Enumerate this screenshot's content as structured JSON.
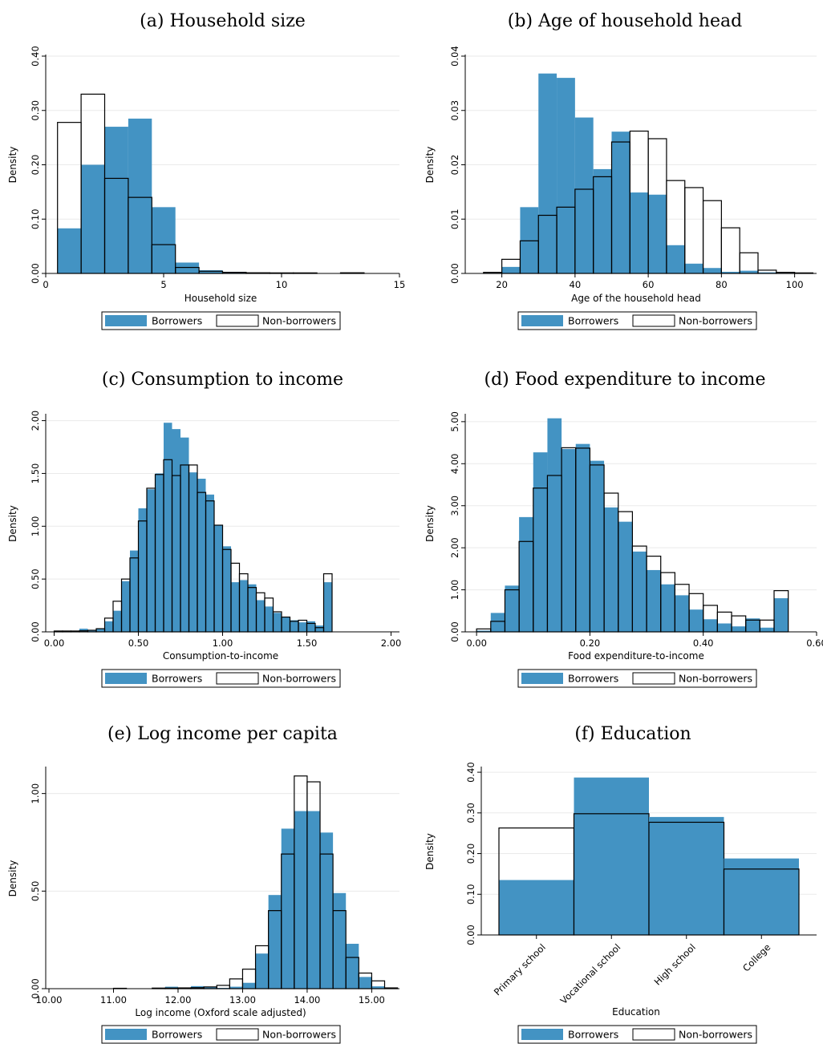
{
  "legend": {
    "borrowers": "Borrowers",
    "non_borrowers": "Non-borrowers"
  },
  "colors": {
    "borrowers": "#4393c3",
    "non_borrowers_fill": "none",
    "non_borrowers_stroke": "#000000",
    "grid": "#eaeaea"
  },
  "chart_data": [
    {
      "type": "bar",
      "title": "(a) Household size",
      "xlabel": "Household size",
      "ylabel": "Density",
      "xlim": [
        0,
        15
      ],
      "ylim": [
        0,
        0.4
      ],
      "xticks": [
        0,
        5,
        10,
        15
      ],
      "xtick_labels": [
        "0",
        "5",
        "10",
        "15"
      ],
      "yticks": [
        0,
        0.1,
        0.2,
        0.3,
        0.4
      ],
      "ytick_labels": [
        "0.00",
        "0.10",
        "0.20",
        "0.30",
        "0.40"
      ],
      "bin_start": 0.5,
      "bin_width": 1,
      "grid": true,
      "legend_position": "bottom",
      "series": [
        {
          "name": "Borrowers",
          "values": [
            0.083,
            0.2,
            0.27,
            0.285,
            0.122,
            0.02,
            0.006,
            0.003,
            0.001,
            0.001,
            0,
            0,
            0
          ]
        },
        {
          "name": "Non-borrowers",
          "values": [
            0.278,
            0.33,
            0.175,
            0.14,
            0.053,
            0.011,
            0.004,
            0.002,
            0.0012,
            0.001,
            0.001,
            0,
            0.0012
          ]
        }
      ]
    },
    {
      "type": "bar",
      "title": "(b) Age of household head",
      "xlabel": "Age of the household head",
      "ylabel": "Density",
      "xlim": [
        10,
        106
      ],
      "ylim": [
        0,
        0.04
      ],
      "xticks": [
        20,
        40,
        60,
        80,
        100
      ],
      "xtick_labels": [
        "20",
        "40",
        "60",
        "80",
        "100"
      ],
      "yticks": [
        0,
        0.01,
        0.02,
        0.03,
        0.04
      ],
      "ytick_labels": [
        "0.00",
        "0.01",
        "0.02",
        "0.03",
        "0.04"
      ],
      "bin_start": 15,
      "bin_width": 5,
      "grid": true,
      "legend_position": "bottom",
      "series": [
        {
          "name": "Borrowers",
          "values": [
            0.0001,
            0.0012,
            0.0122,
            0.0368,
            0.036,
            0.0287,
            0.0192,
            0.0261,
            0.0149,
            0.0145,
            0.0052,
            0.0018,
            0.001,
            0.0003,
            0.0005,
            0.0002,
            0.0001,
            0.0001
          ]
        },
        {
          "name": "Non-borrowers",
          "values": [
            0.0002,
            0.0026,
            0.006,
            0.0107,
            0.0122,
            0.0155,
            0.0178,
            0.0242,
            0.0262,
            0.0248,
            0.0171,
            0.0158,
            0.0134,
            0.0084,
            0.0038,
            0.0006,
            0.0002,
            0.0001
          ]
        }
      ]
    },
    {
      "type": "bar",
      "title": "(c) Consumption to income",
      "xlabel": "Consumption-to-income",
      "ylabel": "Density",
      "xlim": [
        -0.05,
        2.05
      ],
      "ylim": [
        0,
        2.05
      ],
      "xticks": [
        0,
        0.5,
        1,
        1.5,
        2
      ],
      "xtick_labels": [
        "0.00",
        "0.50",
        "1.00",
        "1.50",
        "2.00"
      ],
      "yticks": [
        0,
        0.5,
        1,
        1.5,
        2
      ],
      "ytick_labels": [
        "0.00",
        "0.50",
        "1.00",
        "1.50",
        "2.00"
      ],
      "bin_start": 0,
      "bin_width": 0.05,
      "grid": true,
      "legend_position": "bottom",
      "series": [
        {
          "name": "Borrowers",
          "values": [
            0.004,
            0.004,
            0.004,
            0.03,
            0.018,
            0.03,
            0.1,
            0.2,
            0.48,
            0.77,
            1.17,
            1.35,
            1.5,
            1.98,
            1.92,
            1.84,
            1.51,
            1.45,
            1.3,
            1.01,
            0.81,
            0.47,
            0.49,
            0.45,
            0.3,
            0.24,
            0.18,
            0.14,
            0.11,
            0.09,
            0.1,
            0.06,
            0.47
          ]
        },
        {
          "name": "Non-borrowers",
          "values": [
            0.008,
            0.008,
            0.008,
            0.01,
            0.015,
            0.03,
            0.13,
            0.29,
            0.5,
            0.7,
            1.05,
            1.36,
            1.49,
            1.63,
            1.48,
            1.58,
            1.58,
            1.32,
            1.24,
            1.01,
            0.78,
            0.65,
            0.55,
            0.42,
            0.37,
            0.32,
            0.19,
            0.14,
            0.1,
            0.11,
            0.08,
            0.04,
            0.55
          ]
        }
      ]
    },
    {
      "type": "bar",
      "title": "(d) Food expenditure to income",
      "xlabel": "Food expenditure-to-income",
      "ylabel": "Density",
      "xlim": [
        -0.02,
        0.6
      ],
      "ylim": [
        0,
        5.15
      ],
      "xticks": [
        0,
        0.2,
        0.4,
        0.6
      ],
      "xtick_labels": [
        "0.00",
        "0.20",
        "0.40",
        "0.60"
      ],
      "yticks": [
        0,
        1,
        2,
        3,
        4,
        5
      ],
      "ytick_labels": [
        "0.00",
        "1.00",
        "2.00",
        "3.00",
        "4.00",
        "5.00"
      ],
      "bin_start": 0,
      "bin_width": 0.025,
      "grid": true,
      "legend_position": "bottom",
      "series": [
        {
          "name": "Borrowers",
          "values": [
            0.03,
            0.45,
            1.1,
            2.73,
            4.27,
            5.08,
            4.35,
            4.47,
            4.07,
            2.96,
            2.62,
            1.91,
            1.47,
            1.13,
            0.87,
            0.53,
            0.3,
            0.2,
            0.13,
            0.32,
            0.1,
            0.8
          ]
        },
        {
          "name": "Non-borrowers",
          "values": [
            0.07,
            0.25,
            1.0,
            2.15,
            3.42,
            3.72,
            4.38,
            4.37,
            3.97,
            3.3,
            2.86,
            2.04,
            1.8,
            1.41,
            1.13,
            0.91,
            0.63,
            0.47,
            0.38,
            0.28,
            0.28,
            0.98
          ]
        }
      ]
    },
    {
      "type": "bar",
      "title": "(e) Log income per capita",
      "xlabel": "Log income (Oxford scale adjusted)",
      "ylabel": "Density",
      "xlim": [
        9.95,
        15.43
      ],
      "ylim": [
        0,
        1.13
      ],
      "xticks": [
        10,
        11,
        12,
        13,
        14,
        15
      ],
      "xtick_labels": [
        "10.00",
        "11.00",
        "12.00",
        "13.00",
        "14.00",
        "15.00"
      ],
      "yticks": [
        0,
        0.5,
        1
      ],
      "ytick_labels": [
        "0.00",
        "0.50",
        "1.00"
      ],
      "bin_start": 11.0,
      "bin_width": 0.2,
      "grid": true,
      "legend_position": "bottom",
      "series": [
        {
          "name": "Borrowers",
          "values": [
            0,
            0.002,
            0,
            0,
            0.01,
            0,
            0.013,
            0.008,
            0.004,
            0.01,
            0.03,
            0.18,
            0.48,
            0.82,
            0.91,
            0.91,
            0.8,
            0.49,
            0.23,
            0.06,
            0.012,
            0.002
          ]
        },
        {
          "name": "Non-borrowers",
          "values": [
            0.002,
            0,
            0,
            0.003,
            0.003,
            0.004,
            0.005,
            0.009,
            0.017,
            0.05,
            0.1,
            0.22,
            0.4,
            0.69,
            1.09,
            1.06,
            0.69,
            0.4,
            0.16,
            0.08,
            0.04,
            0.004
          ]
        }
      ]
    },
    {
      "type": "bar",
      "title": "(f) Education",
      "xlabel": "Education",
      "ylabel": "Density",
      "ylim": [
        0,
        0.41
      ],
      "categories": [
        "Primary school",
        "Vocational school",
        "High school",
        "College"
      ],
      "yticks": [
        0,
        0.1,
        0.2,
        0.3,
        0.4
      ],
      "ytick_labels": [
        "0.00",
        "0.10",
        "0.20",
        "0.30",
        "0.40"
      ],
      "grid": true,
      "legend_position": "bottom",
      "series": [
        {
          "name": "Borrowers",
          "values": [
            0.135,
            0.387,
            0.29,
            0.188
          ]
        },
        {
          "name": "Non-borrowers",
          "values": [
            0.263,
            0.298,
            0.277,
            0.162
          ]
        }
      ]
    }
  ]
}
